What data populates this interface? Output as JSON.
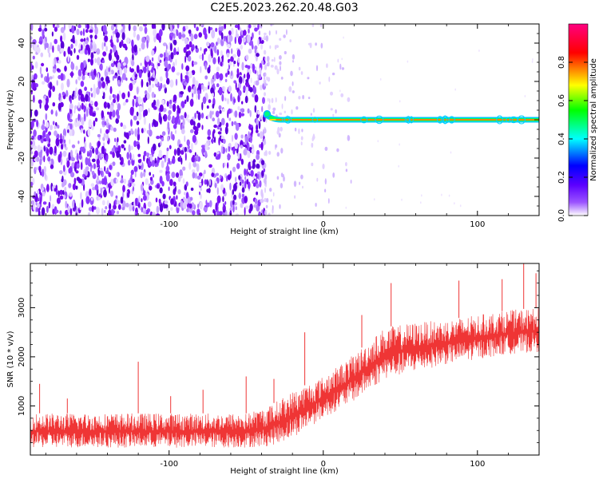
{
  "title": "C2E5.2023.262.20.48.G03",
  "chart_data": [
    {
      "type": "heatmap",
      "title": "C2E5.2023.262.20.48.G03",
      "xlabel": "Height of straight line (km)",
      "ylabel": "Frequency (Hz)",
      "xlim": [
        -190,
        140
      ],
      "ylim": [
        -50,
        50
      ],
      "xticks": [
        -100,
        0,
        100
      ],
      "yticks": [
        -40,
        -20,
        0,
        20,
        40
      ],
      "grid": false,
      "noise_region_x": [
        -190,
        -38
      ],
      "signal_trace": {
        "x_start": -38,
        "x_end": 140,
        "frequency": 0,
        "onset_frequency": 3
      },
      "colorbar": {
        "label": "Normalized spectral amplitude",
        "range": [
          0,
          1
        ],
        "ticks": [
          "0.0",
          "0.2",
          "0.4",
          "0.6",
          "0.8"
        ],
        "colormap": [
          "#ffffff",
          "#7b00e6",
          "#0000ff",
          "#00ffff",
          "#00ff00",
          "#ffff00",
          "#ff0000",
          "#ff0080"
        ]
      }
    },
    {
      "type": "line",
      "xlabel": "Height of straight line (km)",
      "ylabel": "SNR (10 * v/v)",
      "xlim": [
        -190,
        140
      ],
      "ylim": [
        0,
        3900
      ],
      "xticks": [
        -100,
        0,
        100
      ],
      "yticks": [
        1000,
        2000,
        3000
      ],
      "grid": false,
      "color": "#ef3535",
      "series": [
        {
          "x": [
            -190,
            -150,
            -110,
            -80,
            -50,
            -35,
            -20,
            0,
            20,
            40,
            60,
            80,
            100,
            120,
            140
          ],
          "envelope_low": [
            150,
            150,
            150,
            150,
            150,
            180,
            350,
            750,
            1100,
            1550,
            1700,
            1850,
            1950,
            2050,
            2100
          ],
          "envelope_high": [
            850,
            850,
            850,
            850,
            850,
            1000,
            1300,
            1600,
            2050,
            2600,
            2700,
            2750,
            2850,
            2950,
            3000
          ],
          "spikes": [
            {
              "x": -184,
              "y": 1450
            },
            {
              "x": -166,
              "y": 1150
            },
            {
              "x": -120,
              "y": 1900
            },
            {
              "x": -99,
              "y": 1200
            },
            {
              "x": -78,
              "y": 1330
            },
            {
              "x": -50,
              "y": 1600
            },
            {
              "x": -32,
              "y": 1550
            },
            {
              "x": -12,
              "y": 2500
            },
            {
              "x": 25,
              "y": 2850
            },
            {
              "x": 44,
              "y": 3500
            },
            {
              "x": 88,
              "y": 3550
            },
            {
              "x": 116,
              "y": 3580
            },
            {
              "x": 130,
              "y": 3900
            },
            {
              "x": 138,
              "y": 3700
            }
          ]
        }
      ]
    }
  ]
}
